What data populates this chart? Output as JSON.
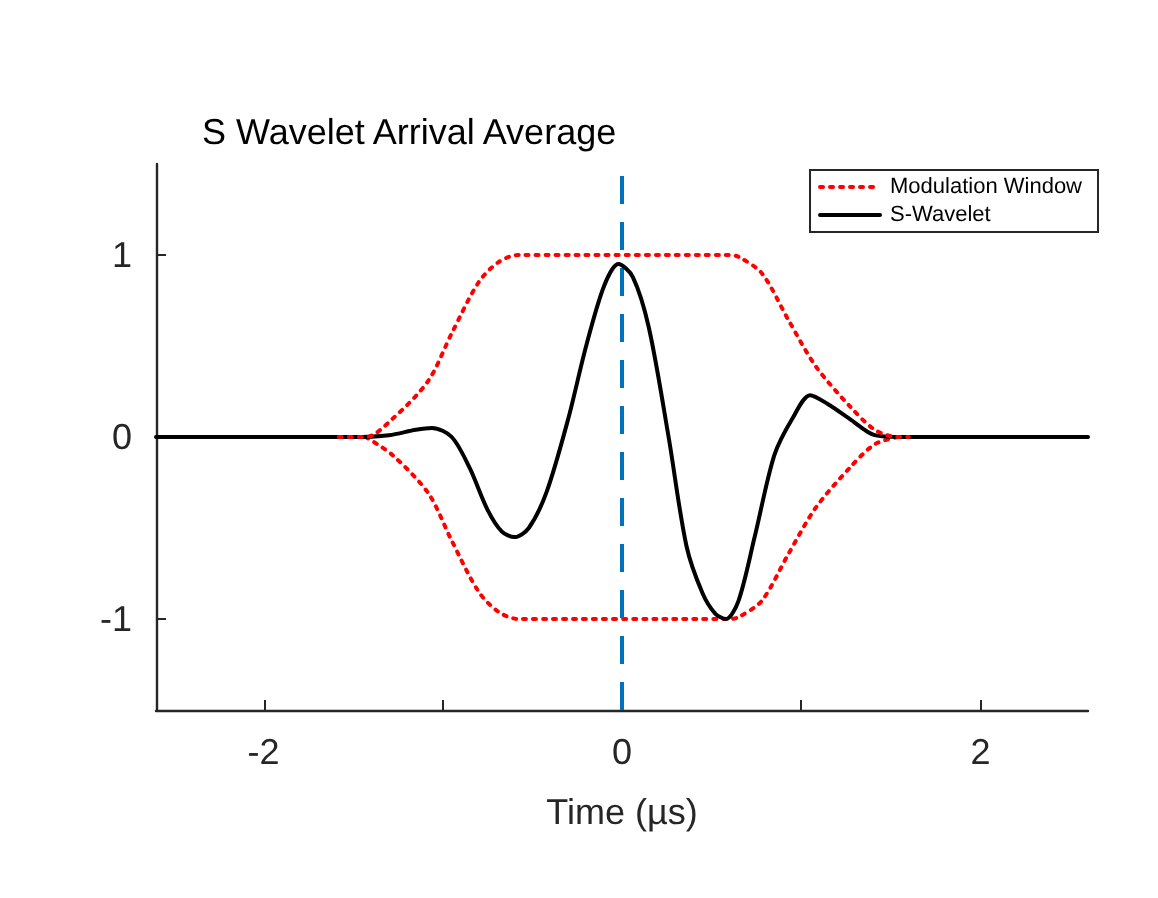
{
  "chart_data": {
    "type": "line",
    "title": "S Wavelet Arrival Average",
    "xlabel": "Time (µs)",
    "xlim": [
      -2.6,
      2.6
    ],
    "ylim": [
      -1.5,
      1.5
    ],
    "xticks": [
      -2,
      {
        "value": -1,
        "label": null
      },
      0,
      {
        "value": 1,
        "label": null
      },
      2
    ],
    "yticks": [
      -1,
      0,
      1
    ],
    "grid": false,
    "legend": "top right",
    "marker": "none",
    "series": [
      {
        "name": "Modulation Window",
        "color": "#ff0000",
        "line_style": "dotted",
        "x": [
          -1.58,
          -1.43,
          -1.28,
          -1.08,
          -0.95,
          -0.8,
          -0.69,
          -0.58,
          0.6,
          0.65,
          0.78,
          0.93,
          1.08,
          1.27,
          1.41,
          1.54,
          1.6
        ],
        "values": [
          0,
          0,
          0.1,
          0.31,
          0.57,
          0.85,
          0.96,
          1,
          1,
          0.99,
          0.9,
          0.64,
          0.39,
          0.17,
          0.04,
          0,
          0
        ]
      },
      {
        "name": "S-Wavelet",
        "color": "#000000",
        "line_style": "solid",
        "x": [
          -2.6,
          -1.5,
          -1.3,
          -1.15,
          -1.06,
          -0.95,
          -0.85,
          -0.75,
          -0.67,
          -0.6,
          -0.52,
          -0.42,
          -0.3,
          -0.2,
          -0.1,
          -0.02,
          0.06,
          0.15,
          0.26,
          0.36,
          0.45,
          0.52,
          0.58,
          0.65,
          0.74,
          0.85,
          0.95,
          1.05,
          1.15,
          1.27,
          1.41,
          1.55,
          2.6
        ],
        "values": [
          0,
          0,
          0.01,
          0.04,
          0.05,
          0,
          -0.17,
          -0.4,
          -0.52,
          -0.55,
          -0.5,
          -0.3,
          0.1,
          0.5,
          0.83,
          0.95,
          0.88,
          0.6,
          0,
          -0.6,
          -0.86,
          -0.97,
          -1,
          -0.9,
          -0.55,
          -0.1,
          0.1,
          0.23,
          0.18,
          0.1,
          0.01,
          0,
          0
        ]
      },
      {
        "color": "#ff0000",
        "line_style": "dotted",
        "x": [
          -1.43,
          -1.28,
          -1.08,
          -0.95,
          -0.8,
          -0.69,
          -0.58,
          0.6,
          0.65,
          0.78,
          0.93,
          1.08,
          1.27,
          1.41,
          1.54
        ],
        "values": [
          0,
          -0.1,
          -0.31,
          -0.57,
          -0.85,
          -0.96,
          -1,
          -1,
          -0.99,
          -0.9,
          -0.64,
          -0.39,
          -0.17,
          -0.04,
          0
        ]
      }
    ],
    "ref_lines": [
      {
        "axis": "x",
        "value": 0,
        "color": "#0072bd",
        "line_style": "dashed"
      }
    ]
  }
}
